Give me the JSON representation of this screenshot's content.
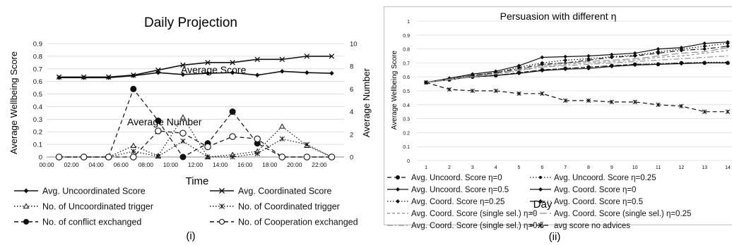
{
  "panel_i": {
    "label": "(i)",
    "chart_data": {
      "type": "line",
      "title": "Daily Projection",
      "xlabel": "Time",
      "ylabel": "Average Wellbeing Score",
      "y2label": "Average Number",
      "categories": [
        "00:00",
        "02:00",
        "04:00",
        "06:00",
        "08:00",
        "10:00",
        "12:00",
        "14:00",
        "16:00",
        "18:00",
        "20:00",
        "22:00"
      ],
      "ylim": [
        0,
        0.9
      ],
      "y2lim": [
        0,
        10
      ],
      "yticks": [
        "0",
        "0.1",
        "0.2",
        "0.3",
        "0.4",
        "0.5",
        "0.6",
        "0.7",
        "0.8",
        "0.9"
      ],
      "y2ticks": [
        "0",
        "2",
        "4",
        "6",
        "8",
        "10"
      ],
      "annotations": [
        "Average Score",
        "Average Number"
      ],
      "grid": "horizontal",
      "legend_position": "bottom",
      "series": [
        {
          "name": "Avg. Uncoordinated Score",
          "axis": "left",
          "style": "solid",
          "marker": "diamond",
          "x": [
            1,
            3,
            5,
            7,
            9,
            11,
            13,
            15,
            17,
            19,
            21,
            23
          ],
          "values": [
            0.63,
            0.63,
            0.63,
            0.645,
            0.67,
            0.655,
            0.665,
            0.67,
            0.65,
            0.68,
            0.67,
            0.665
          ]
        },
        {
          "name": "Avg. Coordinated Score",
          "axis": "left",
          "style": "solid",
          "marker": "x",
          "x": [
            1,
            3,
            5,
            7,
            9,
            11,
            13,
            15,
            17,
            19,
            21,
            23
          ],
          "values": [
            0.635,
            0.635,
            0.635,
            0.65,
            0.69,
            0.73,
            0.75,
            0.75,
            0.775,
            0.775,
            0.8,
            0.8
          ]
        },
        {
          "name": "No. of Uncoordinated trigger",
          "axis": "right",
          "style": "dotted",
          "marker": "triangle",
          "x": [
            1,
            3,
            5,
            7,
            9,
            11,
            13,
            15,
            17,
            19,
            21,
            23
          ],
          "values": [
            0,
            0,
            0,
            1.0,
            0.1,
            3.5,
            0,
            0.2,
            0.5,
            2.7,
            1.0,
            0
          ]
        },
        {
          "name": "No. of Coordinated trigger",
          "axis": "right",
          "style": "dotted",
          "marker": "asterisk",
          "x": [
            1,
            3,
            5,
            7,
            9,
            11,
            13,
            15,
            17,
            19,
            21,
            23
          ],
          "values": [
            0,
            0,
            0,
            0.5,
            0.05,
            1.4,
            0,
            0,
            0.3,
            1.6,
            1.1,
            0
          ]
        },
        {
          "name": "No. of conflict exchanged",
          "axis": "right",
          "style": "dashed",
          "marker": "filled-circle",
          "x": [
            1,
            3,
            5,
            7,
            9,
            11,
            13,
            15,
            17,
            19,
            21,
            23
          ],
          "values": [
            0,
            0,
            0,
            6.0,
            3.2,
            0,
            1.2,
            4.0,
            1.2,
            0,
            0,
            0
          ]
        },
        {
          "name": "No. of Cooperation exchanged",
          "axis": "right",
          "style": "dashed",
          "marker": "open-circle",
          "x": [
            1,
            3,
            5,
            7,
            9,
            11,
            13,
            15,
            17,
            19,
            21,
            23
          ],
          "values": [
            0,
            0,
            0,
            0,
            2.3,
            2.1,
            0.9,
            1.8,
            1.6,
            0,
            0,
            0
          ]
        }
      ]
    }
  },
  "panel_ii": {
    "label": "(ii)",
    "chart_data": {
      "type": "line",
      "title": "Persuasion with different η",
      "xlabel": "Day",
      "ylabel": "Average Wellbeing Score",
      "x": [
        1,
        2,
        3,
        4,
        5,
        6,
        7,
        8,
        9,
        10,
        11,
        12,
        13,
        14
      ],
      "ylim": [
        0,
        1
      ],
      "yticks": [
        "0",
        "0.1",
        "0.2",
        "0.3",
        "0.4",
        "0.5",
        "0.6",
        "0.7",
        "0.8",
        "0.9",
        "1"
      ],
      "xticks": [
        "1",
        "2",
        "3",
        "4",
        "5",
        "6",
        "7",
        "8",
        "9",
        "10",
        "11",
        "12",
        "13",
        "14"
      ],
      "grid": "horizontal",
      "legend_position": "bottom",
      "series": [
        {
          "name": "Avg. Uncoord. Score η=0",
          "style": "dashed",
          "marker": "filled-circle",
          "values": [
            0.56,
            0.58,
            0.6,
            0.61,
            0.63,
            0.65,
            0.66,
            0.67,
            0.68,
            0.69,
            0.69,
            0.7,
            0.7,
            0.7
          ]
        },
        {
          "name": "Avg. Uncoord. Score η=0.25",
          "style": "dotted",
          "marker": "small-circle",
          "values": [
            0.56,
            0.58,
            0.6,
            0.61,
            0.63,
            0.65,
            0.66,
            0.67,
            0.68,
            0.69,
            0.695,
            0.7,
            0.705,
            0.705
          ]
        },
        {
          "name": "Avg. Uncoord. Score η=0.5",
          "style": "solid",
          "marker": "diamond",
          "values": [
            0.56,
            0.58,
            0.6,
            0.61,
            0.625,
            0.645,
            0.655,
            0.66,
            0.675,
            0.685,
            0.69,
            0.695,
            0.7,
            0.7
          ]
        },
        {
          "name": "Avg. Coord. Score η=0",
          "style": "solid",
          "marker": "diamond",
          "values": [
            0.56,
            0.59,
            0.62,
            0.64,
            0.68,
            0.74,
            0.745,
            0.75,
            0.76,
            0.77,
            0.8,
            0.81,
            0.84,
            0.85
          ]
        },
        {
          "name": "Avg. Coord. Score η=0.25",
          "style": "dotted",
          "marker": "diamond",
          "values": [
            0.56,
            0.59,
            0.61,
            0.63,
            0.67,
            0.7,
            0.72,
            0.73,
            0.745,
            0.755,
            0.78,
            0.8,
            0.82,
            0.84
          ]
        },
        {
          "name": "Avg. Coord. Score η=0.5",
          "style": "dashdot",
          "marker": "diamond",
          "values": [
            0.56,
            0.585,
            0.61,
            0.63,
            0.66,
            0.69,
            0.7,
            0.72,
            0.74,
            0.75,
            0.77,
            0.79,
            0.8,
            0.82
          ]
        },
        {
          "name": "Avg. Coord. Score (single sel.) η=0",
          "style": "dashed-gray",
          "marker": "none",
          "values": [
            0.56,
            0.58,
            0.6,
            0.62,
            0.65,
            0.67,
            0.69,
            0.7,
            0.71,
            0.72,
            0.74,
            0.75,
            0.77,
            0.79
          ]
        },
        {
          "name": "Avg. Coord. Score (single sel.) η=0.25",
          "style": "longdash-gray",
          "marker": "none",
          "values": [
            0.56,
            0.585,
            0.605,
            0.625,
            0.655,
            0.68,
            0.7,
            0.71,
            0.72,
            0.73,
            0.75,
            0.77,
            0.78,
            0.81
          ]
        },
        {
          "name": "Avg. Coord. Score (single sel.) η=0.5",
          "style": "dashdot-gray",
          "marker": "none",
          "values": [
            0.56,
            0.58,
            0.6,
            0.62,
            0.645,
            0.67,
            0.68,
            0.69,
            0.7,
            0.71,
            0.72,
            0.73,
            0.74,
            0.75
          ]
        },
        {
          "name": "avg score no advices",
          "style": "dashed",
          "marker": "asterisk",
          "values": [
            0.56,
            0.51,
            0.5,
            0.5,
            0.48,
            0.48,
            0.43,
            0.43,
            0.42,
            0.42,
            0.4,
            0.39,
            0.35,
            0.35
          ]
        }
      ]
    }
  }
}
